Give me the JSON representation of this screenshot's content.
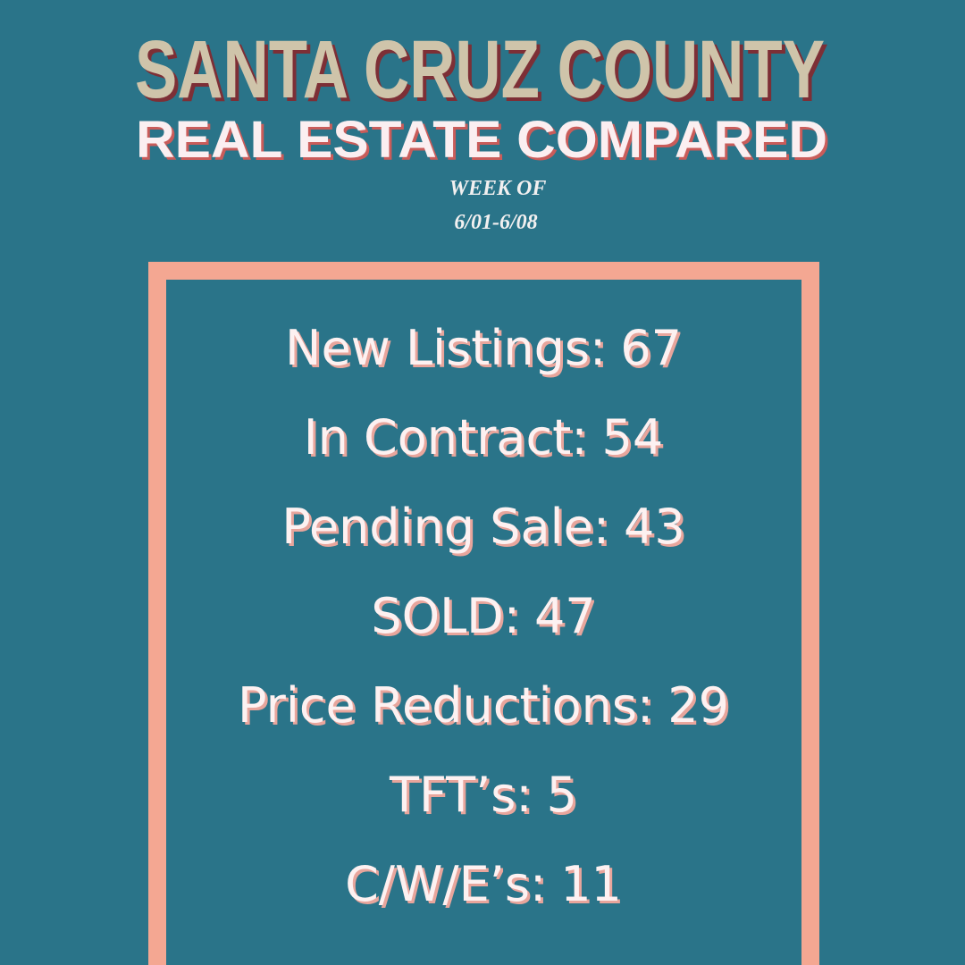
{
  "header": {
    "title": "SANTA CRUZ COUNTY",
    "subtitle": "REAL ESTATE COMPARED",
    "week_label": "WEEK OF",
    "date_range": "6/01-6/08"
  },
  "stats": [
    {
      "label": "New Listings:",
      "value": 67
    },
    {
      "label": "In Contract:",
      "value": 54
    },
    {
      "label": "Pending Sale:",
      "value": 43
    },
    {
      "label": "SOLD:",
      "value": 47
    },
    {
      "label": "Price Reductions:",
      "value": 29
    },
    {
      "label": "TFT’s:",
      "value": 5
    },
    {
      "label": "C/W/E’s:",
      "value": 11
    }
  ]
}
